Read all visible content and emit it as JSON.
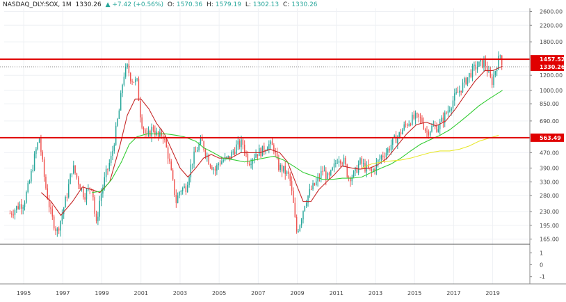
{
  "header": {
    "symbol": "NASDAQ_DLY:SOX, 1M",
    "last": "1330.26",
    "change": "▲ +7.42 (+0.56%)",
    "open_label": "O:",
    "open": "1570.36",
    "high_label": "H:",
    "high": "1579.19",
    "low_label": "L:",
    "low": "1302.13",
    "close_label": "C:",
    "close": "1330.26"
  },
  "colors": {
    "up": "#26a69a",
    "down": "#ef5350",
    "hline": "#e00000",
    "ma_short": "#c62828",
    "ma_mid": "#33cc33",
    "ma_long": "#e8e830",
    "grid": "#eef0f4"
  },
  "chart_data": {
    "type": "candlestick",
    "title": "NASDAQ_DLY:SOX, 1M",
    "y_scale": "log",
    "ylim": [
      155,
      2700
    ],
    "xlim": [
      1994.0,
      2020.9
    ],
    "y_ticks": [
      "2600.00",
      "2200.00",
      "1800.00",
      "1457.52",
      "1330.26",
      "1200.00",
      "1000.00",
      "850.00",
      "690.00",
      "563.49",
      "470.00",
      "390.00",
      "330.00",
      "280.00",
      "230.00",
      "195.00",
      "165.00"
    ],
    "x_ticks": [
      "1995",
      "1997",
      "1999",
      "2001",
      "2003",
      "2005",
      "2007",
      "2009",
      "2011",
      "2013",
      "2015",
      "2017",
      "2019"
    ],
    "horizontal_lines": [
      {
        "value": 1457.52,
        "label": "1457.52"
      },
      {
        "value": 563.49,
        "label": "563.49"
      }
    ],
    "last_price": {
      "value": 1330.26,
      "label": "1330.26"
    },
    "price_path": [
      [
        1994.3,
        225
      ],
      [
        1994.8,
        250
      ],
      [
        1995.0,
        255
      ],
      [
        1995.3,
        330
      ],
      [
        1995.6,
        470
      ],
      [
        1995.8,
        560
      ],
      [
        1996.1,
        320
      ],
      [
        1996.4,
        220
      ],
      [
        1996.7,
        180
      ],
      [
        1996.9,
        210
      ],
      [
        1997.2,
        280
      ],
      [
        1997.5,
        400
      ],
      [
        1997.8,
        330
      ],
      [
        1998.1,
        280
      ],
      [
        1998.5,
        320
      ],
      [
        1998.7,
        190
      ],
      [
        1998.9,
        270
      ],
      [
        1999.2,
        360
      ],
      [
        1999.5,
        450
      ],
      [
        1999.9,
        800
      ],
      [
        2000.1,
        1200
      ],
      [
        2000.3,
        1320
      ],
      [
        2000.5,
        1150
      ],
      [
        2000.8,
        1100
      ],
      [
        2001.0,
        700
      ],
      [
        2001.3,
        560
      ],
      [
        2001.6,
        640
      ],
      [
        2001.9,
        560
      ],
      [
        2002.1,
        600
      ],
      [
        2002.4,
        450
      ],
      [
        2002.6,
        340
      ],
      [
        2002.8,
        260
      ],
      [
        2003.0,
        300
      ],
      [
        2003.3,
        310
      ],
      [
        2003.6,
        420
      ],
      [
        2003.9,
        500
      ],
      [
        2004.1,
        540
      ],
      [
        2004.5,
        420
      ],
      [
        2004.8,
        380
      ],
      [
        2005.0,
        420
      ],
      [
        2005.5,
        440
      ],
      [
        2005.9,
        510
      ],
      [
        2006.2,
        530
      ],
      [
        2006.5,
        420
      ],
      [
        2006.9,
        470
      ],
      [
        2007.2,
        480
      ],
      [
        2007.5,
        520
      ],
      [
        2007.8,
        500
      ],
      [
        2008.0,
        400
      ],
      [
        2008.3,
        380
      ],
      [
        2008.6,
        350
      ],
      [
        2008.8,
        250
      ],
      [
        2008.95,
        180
      ],
      [
        2009.1,
        195
      ],
      [
        2009.4,
        260
      ],
      [
        2009.7,
        300
      ],
      [
        2010.0,
        330
      ],
      [
        2010.3,
        380
      ],
      [
        2010.6,
        340
      ],
      [
        2010.9,
        400
      ],
      [
        2011.1,
        450
      ],
      [
        2011.4,
        420
      ],
      [
        2011.6,
        350
      ],
      [
        2011.9,
        360
      ],
      [
        2012.2,
        420
      ],
      [
        2012.5,
        390
      ],
      [
        2012.8,
        370
      ],
      [
        2013.0,
        400
      ],
      [
        2013.3,
        450
      ],
      [
        2013.6,
        480
      ],
      [
        2013.9,
        540
      ],
      [
        2014.2,
        580
      ],
      [
        2014.5,
        650
      ],
      [
        2014.8,
        700
      ],
      [
        2015.1,
        720
      ],
      [
        2015.4,
        690
      ],
      [
        2015.6,
        600
      ],
      [
        2015.9,
        640
      ],
      [
        2016.2,
        640
      ],
      [
        2016.5,
        720
      ],
      [
        2016.8,
        820
      ],
      [
        2017.0,
        900
      ],
      [
        2017.3,
        1000
      ],
      [
        2017.6,
        1120
      ],
      [
        2017.9,
        1250
      ],
      [
        2018.1,
        1320
      ],
      [
        2018.4,
        1380
      ],
      [
        2018.6,
        1400
      ],
      [
        2018.8,
        1200
      ],
      [
        2018.95,
        1100
      ],
      [
        2019.1,
        1250
      ],
      [
        2019.3,
        1450
      ],
      [
        2019.42,
        1570
      ],
      [
        2019.5,
        1330
      ]
    ],
    "series": [
      {
        "points": [
          [
            1995.9,
            290
          ],
          [
            1996.4,
            260
          ],
          [
            1996.9,
            220
          ],
          [
            1997.5,
            260
          ],
          [
            1998.0,
            310
          ],
          [
            1998.5,
            300
          ],
          [
            1998.9,
            290
          ],
          [
            1999.4,
            330
          ],
          [
            1999.9,
            500
          ],
          [
            2000.3,
            740
          ],
          [
            2000.7,
            900
          ],
          [
            2001.0,
            900
          ],
          [
            2001.4,
            800
          ],
          [
            2001.8,
            670
          ],
          [
            2002.2,
            590
          ],
          [
            2002.6,
            480
          ],
          [
            2003.0,
            390
          ],
          [
            2003.4,
            350
          ],
          [
            2003.8,
            390
          ],
          [
            2004.2,
            440
          ],
          [
            2004.6,
            460
          ],
          [
            2005.0,
            440
          ],
          [
            2005.6,
            440
          ],
          [
            2006.1,
            470
          ],
          [
            2006.6,
            470
          ],
          [
            2007.1,
            470
          ],
          [
            2007.6,
            490
          ],
          [
            2008.1,
            470
          ],
          [
            2008.5,
            420
          ],
          [
            2008.9,
            330
          ],
          [
            2009.3,
            260
          ],
          [
            2009.7,
            260
          ],
          [
            2010.1,
            300
          ],
          [
            2010.5,
            330
          ],
          [
            2010.9,
            360
          ],
          [
            2011.3,
            400
          ],
          [
            2011.8,
            390
          ],
          [
            2012.2,
            385
          ],
          [
            2012.7,
            390
          ],
          [
            2013.1,
            405
          ],
          [
            2013.6,
            440
          ],
          [
            2014.1,
            510
          ],
          [
            2014.6,
            590
          ],
          [
            2015.1,
            660
          ],
          [
            2015.6,
            680
          ],
          [
            2016.1,
            650
          ],
          [
            2016.6,
            690
          ],
          [
            2017.1,
            800
          ],
          [
            2017.6,
            950
          ],
          [
            2018.1,
            1120
          ],
          [
            2018.6,
            1270
          ],
          [
            2019.0,
            1270
          ],
          [
            2019.5,
            1340
          ]
        ]
      },
      {
        "points": [
          [
            1998.5,
            290
          ],
          [
            1999.0,
            295
          ],
          [
            1999.5,
            340
          ],
          [
            2000.0,
            420
          ],
          [
            2000.4,
            520
          ],
          [
            2000.8,
            570
          ],
          [
            2001.3,
            590
          ],
          [
            2001.8,
            590
          ],
          [
            2002.3,
            590
          ],
          [
            2002.8,
            580
          ],
          [
            2003.2,
            570
          ],
          [
            2003.8,
            540
          ],
          [
            2004.2,
            500
          ],
          [
            2004.7,
            470
          ],
          [
            2005.2,
            440
          ],
          [
            2005.8,
            430
          ],
          [
            2006.3,
            420
          ],
          [
            2006.8,
            430
          ],
          [
            2007.3,
            440
          ],
          [
            2007.8,
            450
          ],
          [
            2008.3,
            430
          ],
          [
            2008.8,
            400
          ],
          [
            2009.3,
            370
          ],
          [
            2009.8,
            355
          ],
          [
            2010.3,
            340
          ],
          [
            2010.8,
            340
          ],
          [
            2011.3,
            345
          ],
          [
            2011.8,
            345
          ],
          [
            2012.3,
            350
          ],
          [
            2012.8,
            370
          ],
          [
            2013.3,
            390
          ],
          [
            2013.8,
            410
          ],
          [
            2014.3,
            440
          ],
          [
            2014.8,
            480
          ],
          [
            2015.3,
            520
          ],
          [
            2015.8,
            550
          ],
          [
            2016.3,
            580
          ],
          [
            2016.8,
            620
          ],
          [
            2017.3,
            680
          ],
          [
            2017.8,
            750
          ],
          [
            2018.3,
            830
          ],
          [
            2018.8,
            900
          ],
          [
            2019.5,
            1000
          ]
        ]
      },
      {
        "points": [
          [
            2012.3,
            390
          ],
          [
            2012.8,
            410
          ],
          [
            2013.3,
            420
          ],
          [
            2013.8,
            425
          ],
          [
            2014.3,
            430
          ],
          [
            2014.8,
            440
          ],
          [
            2015.3,
            455
          ],
          [
            2015.8,
            470
          ],
          [
            2016.3,
            480
          ],
          [
            2016.8,
            480
          ],
          [
            2017.3,
            490
          ],
          [
            2017.8,
            510
          ],
          [
            2018.3,
            540
          ],
          [
            2018.8,
            560
          ],
          [
            2019.3,
            580
          ]
        ]
      }
    ],
    "indicator_pane": {
      "y_ticks": [
        "1",
        "0",
        "-1"
      ],
      "ylim": [
        -1.6,
        1.6
      ]
    }
  }
}
